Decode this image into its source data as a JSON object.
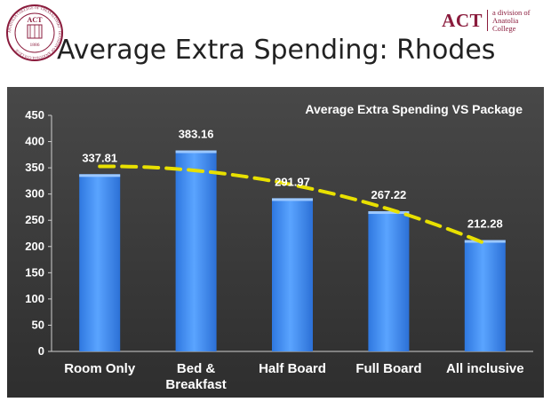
{
  "header": {
    "logo_left_text": "ACT",
    "logo_left_ring": "ANATOLIA COLLEGE OF THESSALONIKI · DIVISION OF ANATOLIA COLLEGE",
    "logo_left_year": "1886",
    "logo_right_text": "ACT",
    "logo_right_sub": "a division of Anatolia College",
    "title": "Average Extra Spending: Rhodes"
  },
  "colors": {
    "brand": "#8a1b3c",
    "chart_bg": "#3a3a3a",
    "bar": "#3f8cf0",
    "trend": "#e8e000",
    "text": "#ffffff"
  },
  "chart_data": {
    "type": "bar",
    "title": "Average Extra Spending VS Package",
    "categories": [
      "Room Only",
      "Bed & Breakfast",
      "Half Board",
      "Full Board",
      "All inclusive"
    ],
    "category_lines": [
      [
        "Room Only"
      ],
      [
        "Bed &",
        "Breakfast"
      ],
      [
        "Half Board"
      ],
      [
        "Full Board"
      ],
      [
        "All inclusive"
      ]
    ],
    "values": [
      337.81,
      383.16,
      291.97,
      267.22,
      212.28
    ],
    "value_labels": [
      "337.81",
      "383.16",
      "291.97",
      "267.22",
      "212.28"
    ],
    "ylim": [
      0,
      450
    ],
    "yticks": [
      0,
      50,
      100,
      150,
      200,
      250,
      300,
      350,
      400,
      450
    ],
    "grid": false,
    "trendline": {
      "type": "polynomial",
      "style": "dashed",
      "color": "#e8e000"
    }
  }
}
